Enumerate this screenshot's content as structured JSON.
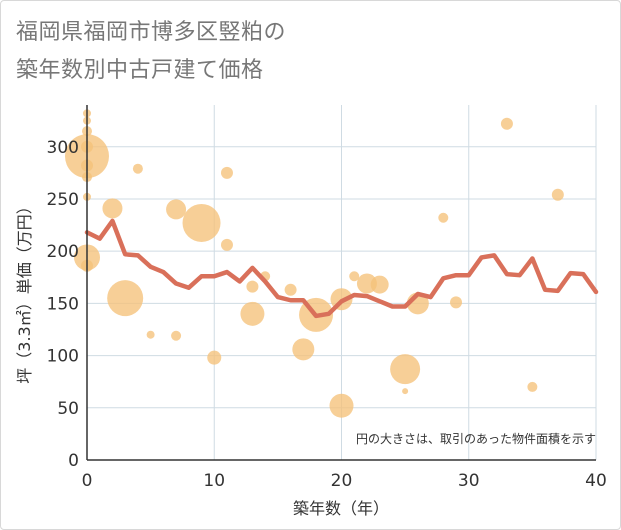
{
  "chart_data": {
    "type": "scatter",
    "title_lines": [
      "福岡県福岡市博多区竪粕の",
      "築年数別中古戸建て価格"
    ],
    "xlabel": "築年数（年）",
    "ylabel": "坪（3.3㎡）単価（万円）",
    "xlim": [
      0,
      40
    ],
    "ylim": [
      0,
      340
    ],
    "x_ticks": [
      0,
      10,
      20,
      30,
      40
    ],
    "y_ticks": [
      0,
      50,
      100,
      150,
      200,
      250,
      300
    ],
    "grid": true,
    "annotation": "円の大きさは、取引のあった物件面積を示す",
    "bubble_color": "#f5c27a",
    "line_color": "#d9705a",
    "bubbles": [
      {
        "x": 0,
        "y": 332,
        "r": 4
      },
      {
        "x": 0,
        "y": 325,
        "r": 4
      },
      {
        "x": 0,
        "y": 315,
        "r": 5
      },
      {
        "x": 0,
        "y": 300,
        "r": 6
      },
      {
        "x": 0,
        "y": 291,
        "r": 22
      },
      {
        "x": 0,
        "y": 282,
        "r": 6
      },
      {
        "x": 0,
        "y": 271,
        "r": 5
      },
      {
        "x": 0,
        "y": 252,
        "r": 4
      },
      {
        "x": 0,
        "y": 194,
        "r": 13
      },
      {
        "x": 0,
        "y": 186,
        "r": 6
      },
      {
        "x": 2,
        "y": 241,
        "r": 10
      },
      {
        "x": 3,
        "y": 155,
        "r": 18
      },
      {
        "x": 4,
        "y": 279,
        "r": 5
      },
      {
        "x": 5,
        "y": 120,
        "r": 4
      },
      {
        "x": 7,
        "y": 240,
        "r": 10
      },
      {
        "x": 7,
        "y": 119,
        "r": 5
      },
      {
        "x": 9,
        "y": 227,
        "r": 19
      },
      {
        "x": 10,
        "y": 98,
        "r": 7
      },
      {
        "x": 11,
        "y": 275,
        "r": 6
      },
      {
        "x": 11,
        "y": 206,
        "r": 6
      },
      {
        "x": 13,
        "y": 166,
        "r": 6
      },
      {
        "x": 13,
        "y": 140,
        "r": 12
      },
      {
        "x": 14,
        "y": 176,
        "r": 5
      },
      {
        "x": 16,
        "y": 163,
        "r": 6
      },
      {
        "x": 17,
        "y": 106,
        "r": 11
      },
      {
        "x": 18,
        "y": 139,
        "r": 17
      },
      {
        "x": 20,
        "y": 154,
        "r": 11
      },
      {
        "x": 20,
        "y": 52,
        "r": 12
      },
      {
        "x": 21,
        "y": 176,
        "r": 5
      },
      {
        "x": 22,
        "y": 169,
        "r": 10
      },
      {
        "x": 23,
        "y": 168,
        "r": 9
      },
      {
        "x": 25,
        "y": 87,
        "r": 15
      },
      {
        "x": 25,
        "y": 66,
        "r": 3
      },
      {
        "x": 26,
        "y": 150,
        "r": 11
      },
      {
        "x": 28,
        "y": 232,
        "r": 5
      },
      {
        "x": 29,
        "y": 151,
        "r": 6
      },
      {
        "x": 33,
        "y": 322,
        "r": 6
      },
      {
        "x": 35,
        "y": 70,
        "r": 5
      },
      {
        "x": 37,
        "y": 254,
        "r": 6
      }
    ],
    "trend_line": {
      "x": [
        0,
        1,
        2,
        3,
        4,
        5,
        6,
        7,
        8,
        9,
        10,
        11,
        12,
        13,
        14,
        15,
        16,
        17,
        18,
        19,
        20,
        21,
        22,
        23,
        24,
        25,
        26,
        27,
        28,
        29,
        30,
        31,
        32,
        33,
        34,
        35,
        36,
        37,
        38,
        39,
        40
      ],
      "y": [
        218,
        212,
        229,
        197,
        196,
        185,
        180,
        169,
        165,
        176,
        176,
        180,
        171,
        184,
        171,
        156,
        153,
        153,
        138,
        140,
        152,
        158,
        157,
        152,
        147,
        147,
        159,
        156,
        174,
        177,
        177,
        194,
        196,
        178,
        177,
        193,
        163,
        162,
        179,
        178,
        161
      ]
    }
  }
}
